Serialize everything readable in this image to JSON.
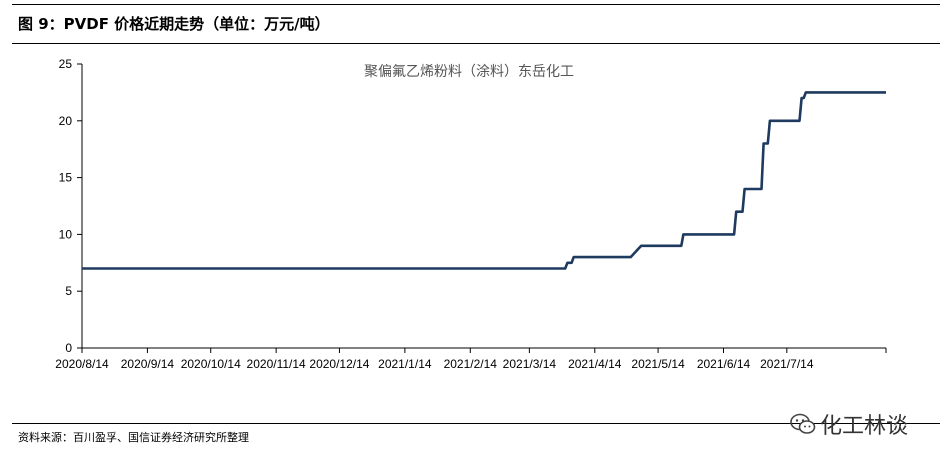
{
  "figure": {
    "title": "图 9：PVDF 价格近期走势（单位：万元/吨）",
    "source": "资料来源：百川盈孚、国信证券经济研究所整理",
    "watermark": "化工林谈",
    "watermark_icon": "wechat-icon"
  },
  "chart_data": {
    "type": "line",
    "title": "",
    "xlabel": "",
    "ylabel": "",
    "ylim": [
      0,
      25
    ],
    "yticks": [
      "0",
      "5",
      "10",
      "15",
      "20",
      "25"
    ],
    "xlim": [
      "2020-08-14",
      "2021-08-30"
    ],
    "xticks": [
      {
        "date": "2020-08-14",
        "label": "2020/8/14"
      },
      {
        "date": "2020-09-14",
        "label": "2020/9/14"
      },
      {
        "date": "2020-10-14",
        "label": "2020/10/14"
      },
      {
        "date": "2020-11-14",
        "label": "2020/11/14"
      },
      {
        "date": "2020-12-14",
        "label": "2020/12/14"
      },
      {
        "date": "2021-01-14",
        "label": "2021/1/14"
      },
      {
        "date": "2021-02-14",
        "label": "2021/2/14"
      },
      {
        "date": "2021-03-14",
        "label": "2021/3/14"
      },
      {
        "date": "2021-04-14",
        "label": "2021/4/14"
      },
      {
        "date": "2021-05-14",
        "label": "2021/5/14"
      },
      {
        "date": "2021-06-14",
        "label": "2021/6/14"
      },
      {
        "date": "2021-07-14",
        "label": "2021/7/14"
      }
    ],
    "grid": false,
    "legend_position": "top-center",
    "series": [
      {
        "name": "聚偏氟乙烯粉料（涂料）东岳化工",
        "color": "#1f3a5f",
        "x": [
          "2020-08-14",
          "2021-03-31",
          "2021-04-01",
          "2021-04-03",
          "2021-04-04",
          "2021-05-01",
          "2021-05-05",
          "2021-05-06",
          "2021-05-25",
          "2021-05-26",
          "2021-06-19",
          "2021-06-20",
          "2021-06-23",
          "2021-06-24",
          "2021-07-02",
          "2021-07-03",
          "2021-07-05",
          "2021-07-06",
          "2021-07-20",
          "2021-07-21",
          "2021-07-22",
          "2021-07-23",
          "2021-08-30"
        ],
        "values": [
          7,
          7,
          7.5,
          7.5,
          8,
          8,
          8.8,
          9,
          9,
          10,
          10,
          12,
          12,
          14,
          14,
          18,
          18,
          20,
          20,
          22,
          22,
          22.5,
          22.5
        ]
      }
    ]
  }
}
